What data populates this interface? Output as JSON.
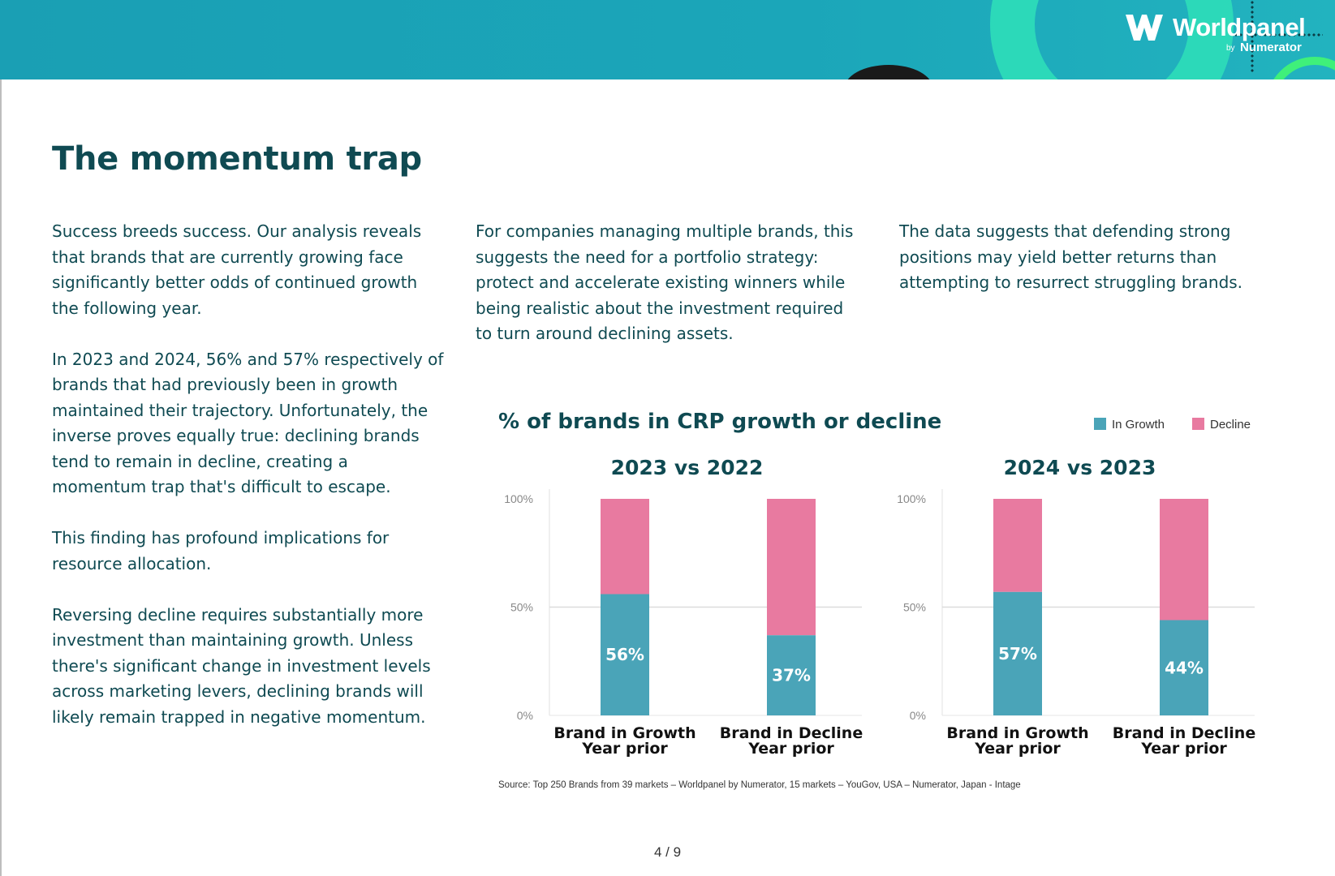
{
  "brand": {
    "name": "Worldpanel",
    "by": "by",
    "parent": "Numerator"
  },
  "page": {
    "title": "The momentum trap",
    "paragraphs_col1": [
      "Success breeds success. Our analysis reveals that brands that are currently growing face significantly better odds of continued growth the following year.",
      "In 2023 and 2024, 56% and 57% respectively of brands that had previously been in growth maintained their trajectory. Unfortunately, the inverse proves equally true: declining brands tend to remain in decline, creating a momentum trap that's difficult to escape.",
      "This finding has profound implications for resource allocation.",
      "Reversing decline requires substantially more investment than maintaining growth. Unless there's significant change in investment levels across marketing levers, declining brands will likely remain trapped in negative momentum."
    ],
    "paragraphs_col2": [
      "For companies managing multiple brands, this suggests the need for a portfolio strategy: protect and accelerate existing winners while being realistic about the investment required to turn around declining assets."
    ],
    "paragraphs_col3": [
      "The data suggests that defending strong positions may yield better returns than attempting to resurrect struggling brands."
    ],
    "pager": "4 / 9"
  },
  "chart_data": {
    "type": "bar",
    "stacked": true,
    "title": "% of brands in CRP growth or decline",
    "legend": [
      "In Growth",
      "Decline"
    ],
    "colors": {
      "growth": "#4aa4b8",
      "decline": "#e87aa0",
      "text": "#0f4a52"
    },
    "yticks": [
      "100%",
      "50%",
      "0%"
    ],
    "ylim": [
      0,
      100
    ],
    "panels": [
      {
        "title": "2023 vs 2022",
        "bars": [
          {
            "label_line1": "Brand in Growth",
            "label_line2": "Year prior",
            "growth": 56,
            "decline": 44,
            "label": "56%"
          },
          {
            "label_line1": "Brand in Decline",
            "label_line2": "Year prior",
            "growth": 37,
            "decline": 63,
            "label": "37%"
          }
        ]
      },
      {
        "title": "2024 vs 2023",
        "bars": [
          {
            "label_line1": "Brand in Growth",
            "label_line2": "Year prior",
            "growth": 57,
            "decline": 43,
            "label": "57%"
          },
          {
            "label_line1": "Brand in Decline",
            "label_line2": "Year prior",
            "growth": 44,
            "decline": 56,
            "label": "44%"
          }
        ]
      }
    ],
    "source": "Source: Top 250 Brands from 39 markets – Worldpanel by Numerator, 15 markets – YouGov, USA – Numerator, Japan - Intage"
  }
}
